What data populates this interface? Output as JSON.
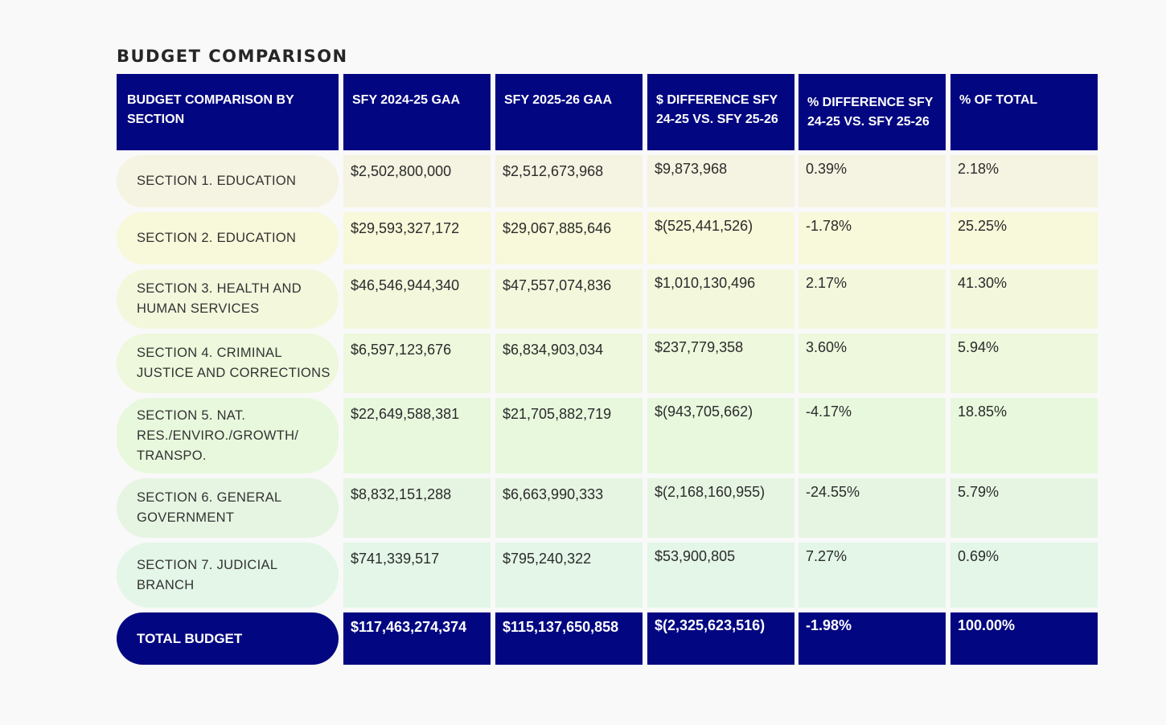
{
  "title": "BUDGET COMPARISON",
  "headers": [
    "BUDGET COMPARISON BY SECTION",
    "SFY 2024-25 GAA",
    "SFY 2025-26 GAA",
    "$ DIFFERENCE SFY 24-25 VS. SFY 25-26",
    "% DIFFERENCE SFY 24-25 VS. SFY 25-26",
    "% OF TOTAL"
  ],
  "rows": [
    {
      "label": "SECTION 1. EDUCATION",
      "sfy2425": "$2,502,800,000",
      "sfy2526": "$2,512,673,968",
      "diff": "$9,873,968",
      "pct_diff": "0.39%",
      "pct_total": "2.18%",
      "color": "#f5f3e1"
    },
    {
      "label": "SECTION 2. EDUCATION",
      "sfy2425": "$29,593,327,172",
      "sfy2526": "$29,067,885,646",
      "diff": "$(525,441,526)",
      "pct_diff": "-1.78%",
      "pct_total": "25.25%",
      "color": "#f8f8da"
    },
    {
      "label": "SECTION 3. HEALTH AND HUMAN SERVICES",
      "sfy2425": "$46,546,944,340",
      "sfy2526": "$47,557,074,836",
      "diff": "$1,010,130,496",
      "pct_diff": "2.17%",
      "pct_total": "41.30%",
      "color": "#f3f8dd"
    },
    {
      "label": "SECTION 4. CRIMINAL JUSTICE AND CORRECTIONS",
      "sfy2425": "$6,597,123,676",
      "sfy2526": "$6,834,903,034",
      "diff": "$237,779,358",
      "pct_diff": "3.60%",
      "pct_total": "5.94%",
      "color": "#edf8dc"
    },
    {
      "label": "SECTION 5. NAT. RES./ENVIRO./GROWTH/ TRANSPO.",
      "sfy2425": "$22,649,588,381",
      "sfy2526": "$21,705,882,719",
      "diff": "$(943,705,662)",
      "pct_diff": "-4.17%",
      "pct_total": "18.85%",
      "color": "#e8f8dd"
    },
    {
      "label": "SECTION 6. GENERAL GOVERNMENT",
      "sfy2425": "$8,832,151,288",
      "sfy2526": "$6,663,990,333",
      "diff": "$(2,168,160,955)",
      "pct_diff": "-24.55%",
      "pct_total": "5.79%",
      "color": "#e6f5e2"
    },
    {
      "label": "SECTION 7. JUDICIAL BRANCH",
      "sfy2425": "$741,339,517",
      "sfy2526": "$795,240,322",
      "diff": "$53,900,805",
      "pct_diff": "7.27%",
      "pct_total": "0.69%",
      "color": "#e3f6e7"
    }
  ],
  "total": {
    "label": "TOTAL BUDGET",
    "sfy2425": "$117,463,274,374",
    "sfy2526": "$115,137,650,858",
    "diff": "$(2,325,623,516)",
    "pct_diff": "-1.98%",
    "pct_total": "100.00%"
  },
  "colors": {
    "header": "#020681",
    "background": "#f9f9f9"
  }
}
